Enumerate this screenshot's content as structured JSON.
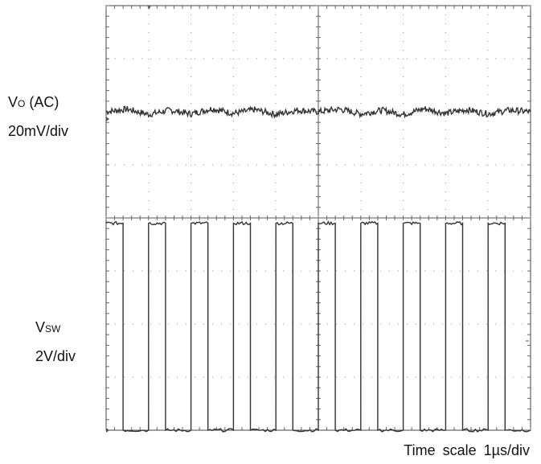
{
  "chart_data": [
    {
      "type": "line",
      "title": "",
      "channel": {
        "label_main": "V",
        "label_sub": "O",
        "label_tail": " (AC)",
        "scale": "20mV/div"
      },
      "x_unit": "µs",
      "y_unit": "div",
      "xlim": [
        0,
        10
      ],
      "ylim": [
        -2,
        2
      ],
      "series": [
        {
          "x": [
            0,
            0.5,
            1,
            1.5,
            2,
            2.5,
            3,
            3.5,
            4,
            4.5,
            5,
            5.5,
            6,
            6.5,
            7,
            7.5,
            8,
            8.5,
            9,
            9.5,
            10
          ],
          "y": [
            0,
            0.05,
            -0.05,
            0.03,
            -0.04,
            0.06,
            -0.03,
            0.04,
            -0.05,
            0.03,
            0,
            0.05,
            -0.04,
            0.03,
            -0.05,
            0.06,
            -0.03,
            0.04,
            -0.04,
            0.03,
            0
          ]
        }
      ]
    },
    {
      "type": "line",
      "title": "",
      "channel": {
        "label_main": "V",
        "label_sub": "SW",
        "label_tail": "",
        "scale": "2V/div"
      },
      "x_unit": "µs",
      "y_unit": "div",
      "xlim": [
        0,
        10
      ],
      "ylim": [
        -2,
        2
      ],
      "period_us": 1,
      "duty": 0.4,
      "levels": {
        "high": 1.9,
        "low": -2.0
      },
      "series": [
        {
          "x": [
            0,
            0.4,
            0.4,
            1,
            1,
            1.4,
            1.4,
            2,
            2,
            2.4,
            2.4,
            3,
            3,
            3.4,
            3.4,
            4,
            4,
            4.4,
            4.4,
            5,
            5,
            5.4,
            5.4,
            6,
            6,
            6.4,
            6.4,
            7,
            7,
            7.4,
            7.4,
            8,
            8,
            8.4,
            8.4,
            9,
            9,
            9.4,
            9.4,
            10
          ],
          "y": [
            1.9,
            1.9,
            -2.0,
            -2.0,
            1.9,
            1.9,
            -2.0,
            -2.0,
            1.9,
            1.9,
            -2.0,
            -2.0,
            1.9,
            1.9,
            -2.0,
            -2.0,
            1.9,
            1.9,
            -2.0,
            -2.0,
            1.9,
            1.9,
            -2.0,
            -2.0,
            1.9,
            1.9,
            -2.0,
            -2.0,
            1.9,
            1.9,
            -2.0,
            -2.0,
            1.9,
            1.9,
            -2.0,
            -2.0,
            1.9,
            1.9,
            -2.0,
            -2.0
          ]
        }
      ]
    }
  ],
  "footer": "Time scale 1µs/div"
}
